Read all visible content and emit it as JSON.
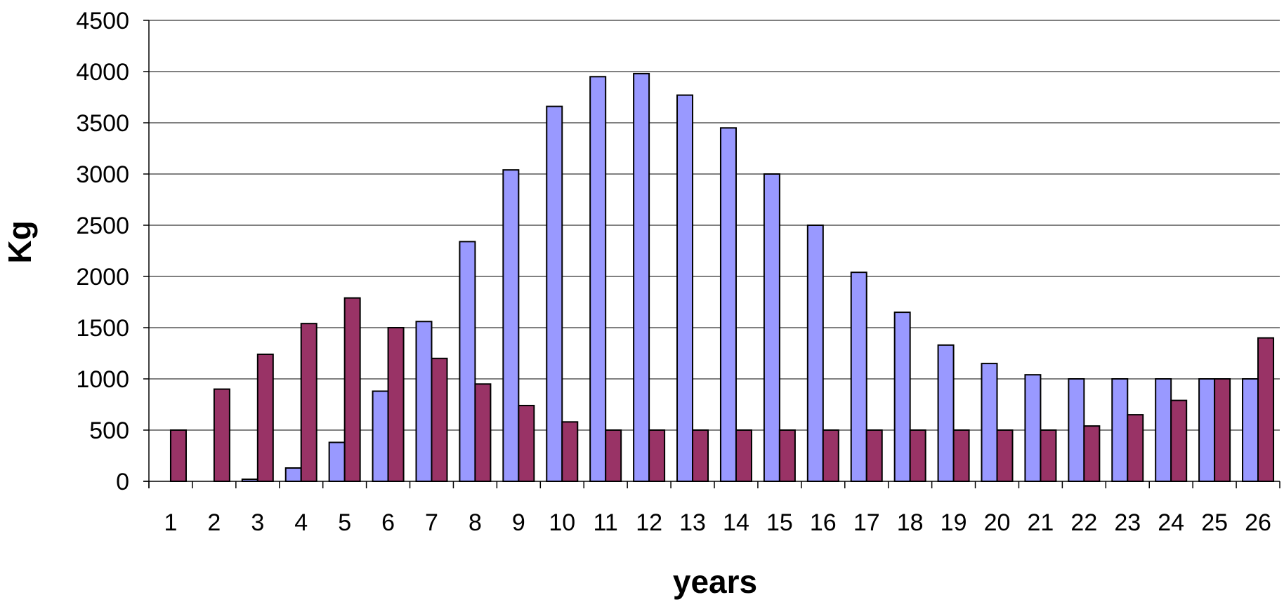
{
  "chart_data": {
    "type": "bar",
    "xlabel": "years",
    "ylabel": "Kg",
    "ylim": [
      0,
      4500
    ],
    "yticks": [
      0,
      500,
      1000,
      1500,
      2000,
      2500,
      3000,
      3500,
      4000,
      4500
    ],
    "grid": true,
    "legend": "none",
    "categories": [
      "1",
      "2",
      "3",
      "4",
      "5",
      "6",
      "7",
      "8",
      "9",
      "10",
      "11",
      "12",
      "13",
      "14",
      "15",
      "16",
      "17",
      "18",
      "19",
      "20",
      "21",
      "22",
      "23",
      "24",
      "25",
      "26"
    ],
    "series": [
      {
        "color": "#9999ff",
        "values": [
          0,
          0,
          20,
          130,
          380,
          880,
          1560,
          2340,
          3040,
          3660,
          3950,
          3980,
          3770,
          3450,
          3000,
          2500,
          2040,
          1650,
          1330,
          1150,
          1040,
          1000,
          1000,
          1000,
          1000,
          1000
        ]
      },
      {
        "color": "#993366",
        "values": [
          500,
          900,
          1240,
          1540,
          1790,
          1500,
          1200,
          950,
          740,
          580,
          500,
          500,
          500,
          500,
          500,
          500,
          500,
          500,
          500,
          500,
          500,
          540,
          650,
          790,
          1000,
          1400
        ]
      }
    ]
  }
}
